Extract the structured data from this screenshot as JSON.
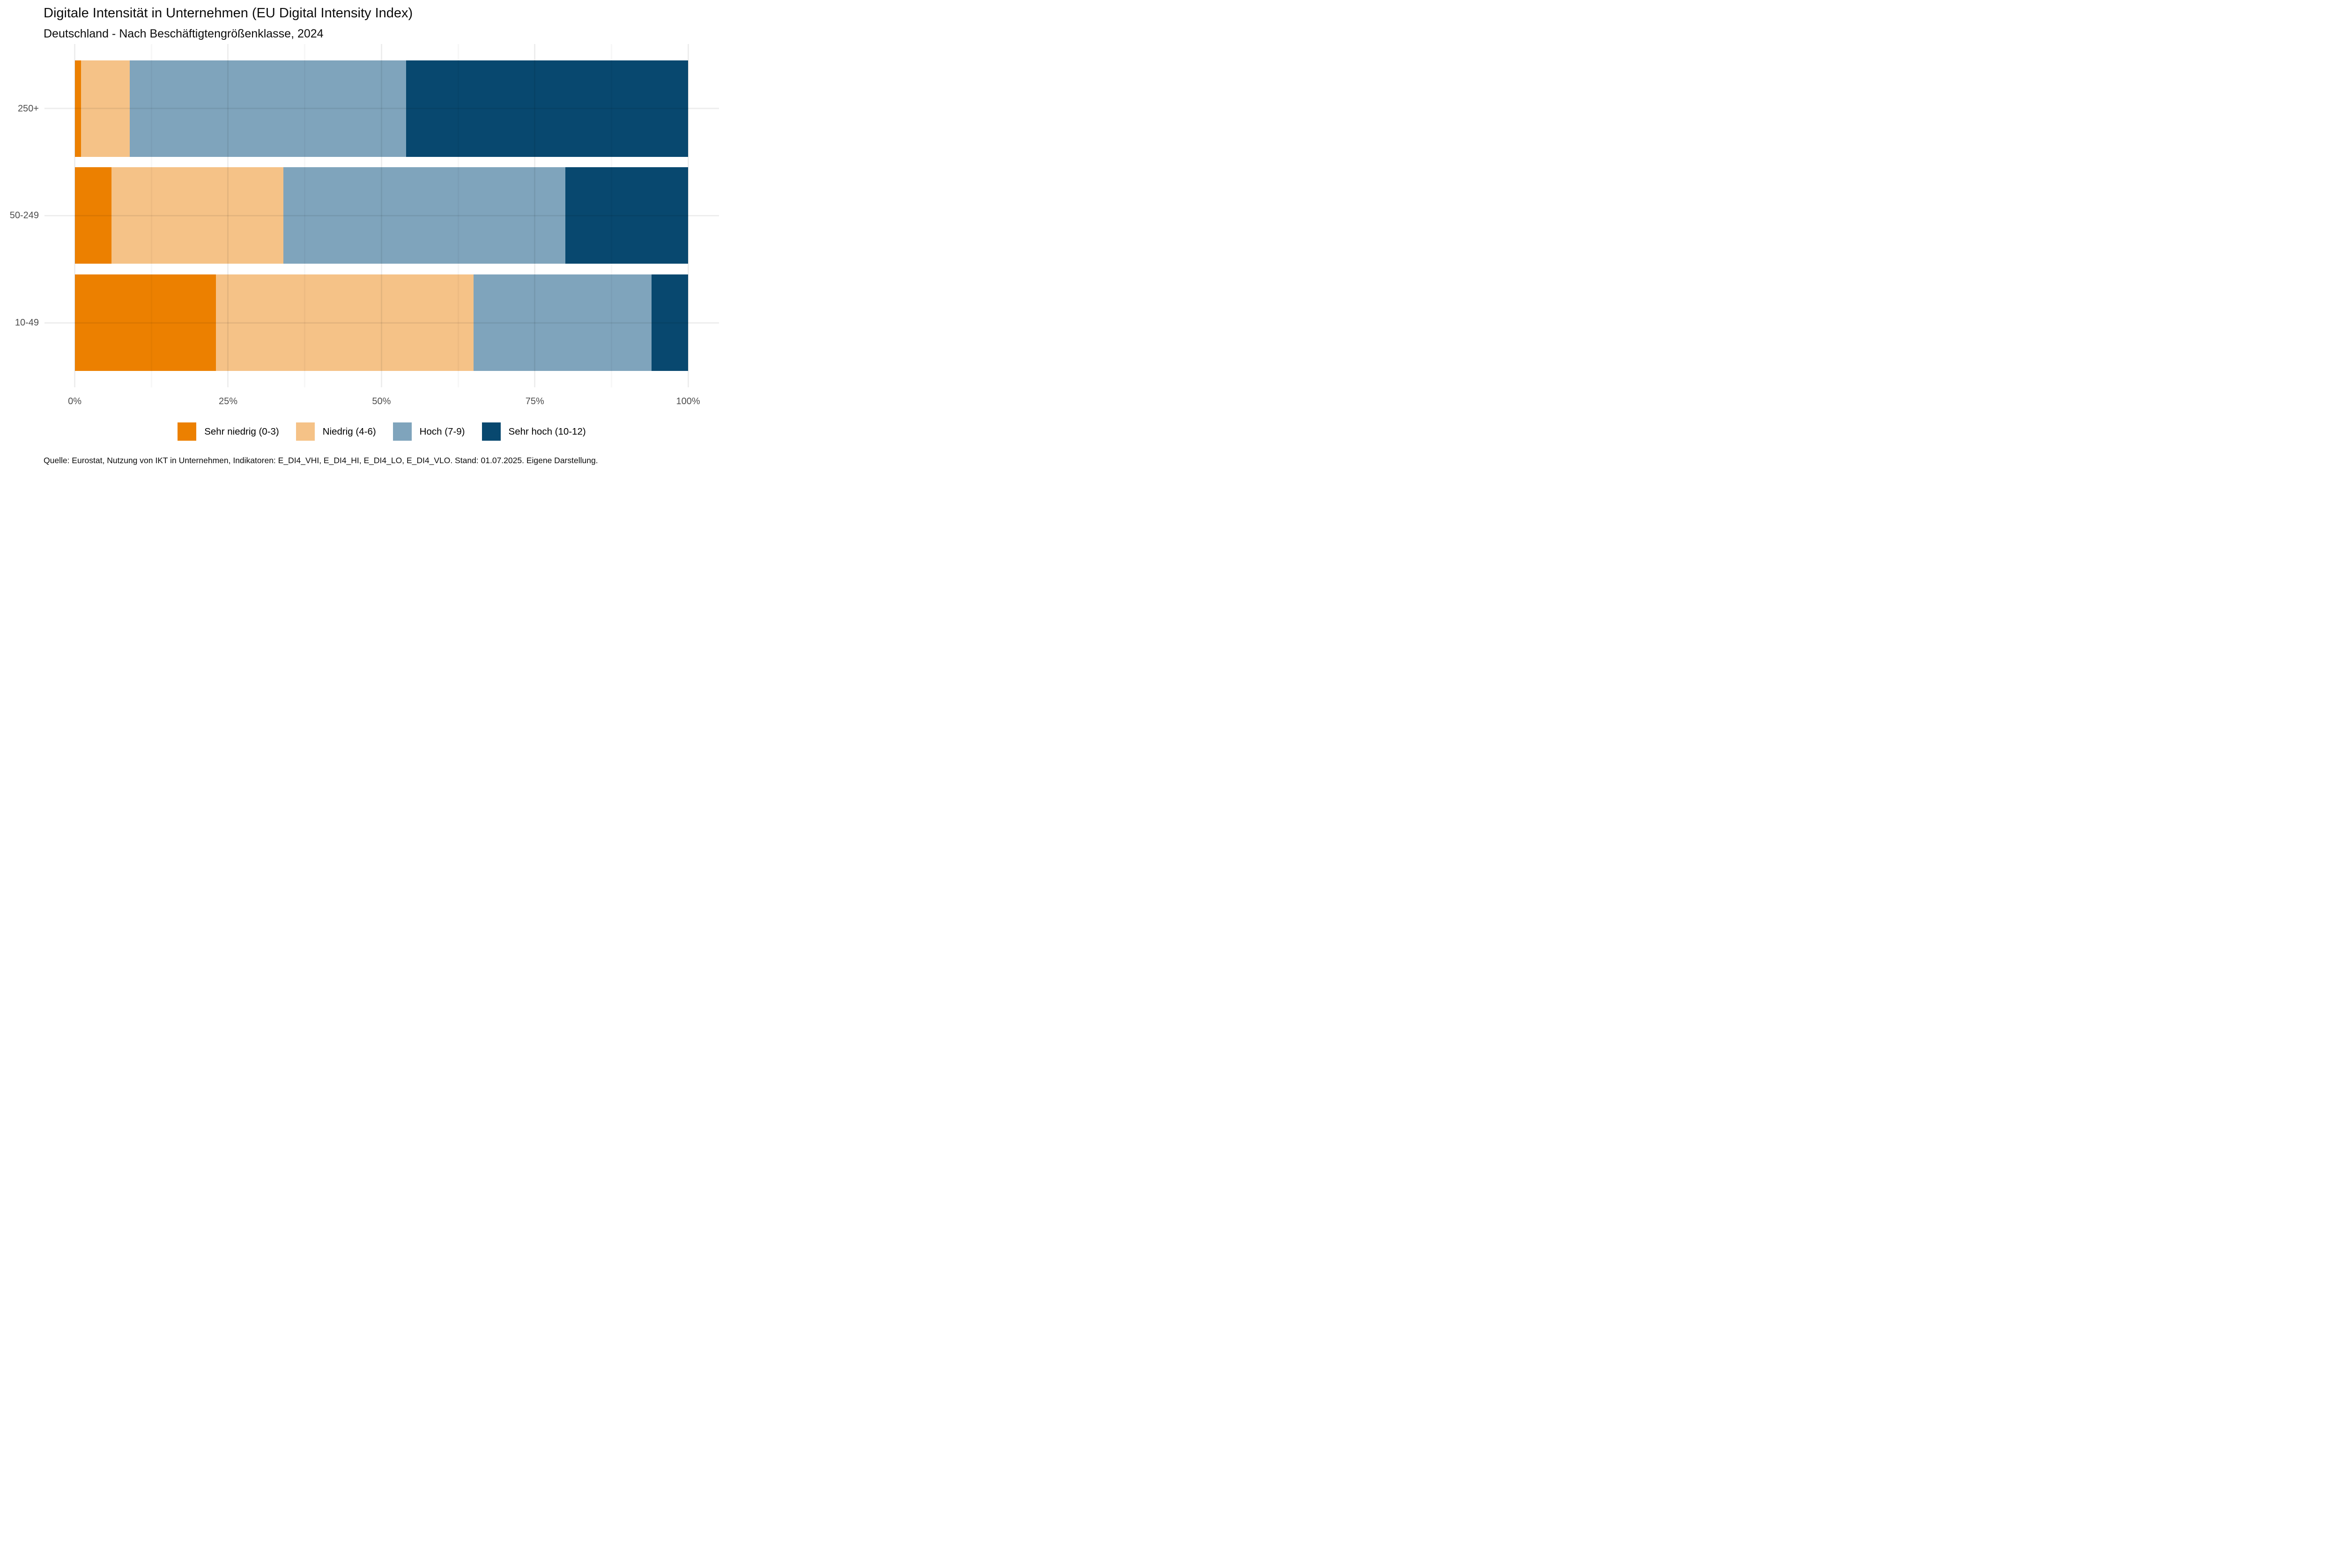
{
  "title": "Digitale Intensität in Unternehmen (EU Digital Intensity Index)",
  "subtitle": "Deutschland - Nach Beschäftigtengrößenklasse, 2024",
  "source_note": "Quelle: Eurostat, Nutzung von IKT in Unternehmen, Indikatoren: E_DI4_VHI, E_DI4_HI, E_DI4_LO, E_DI4_VLO. Stand: 01.07.2025. Eigene Darstellung.",
  "colors": {
    "sehr_niedrig": "#EC8000",
    "niedrig": "#F5C287",
    "hoch": "#7FA4BC",
    "sehr_hoch": "#08486F",
    "axis_text": "#4D4D4D",
    "gridline_on_white": "#EDEDED",
    "background": "#FFFFFF"
  },
  "chart_data": {
    "type": "bar",
    "orientation": "horizontal",
    "stacked": true,
    "unit": "%",
    "title": "Digitale Intensität in Unternehmen (EU Digital Intensity Index)",
    "subtitle": "Deutschland - Nach Beschäftigtengrößenklasse, 2024",
    "xlabel": "",
    "ylabel": "",
    "categories": [
      "250+",
      "50-249",
      "10-49"
    ],
    "series": [
      {
        "name": "Sehr niedrig (0-3)",
        "color": "#EC8000",
        "values": [
          1,
          6,
          23
        ]
      },
      {
        "name": "Niedrig (4-6)",
        "color": "#F5C287",
        "values": [
          8,
          28,
          42
        ]
      },
      {
        "name": "Hoch (7-9)",
        "color": "#7FA4BC",
        "values": [
          45,
          46,
          29
        ]
      },
      {
        "name": "Sehr hoch (10-12)",
        "color": "#08486F",
        "values": [
          46,
          20,
          6
        ]
      }
    ],
    "xlim": [
      0,
      100
    ],
    "x_ticks": [
      "0%",
      "25%",
      "50%",
      "75%",
      "100%"
    ],
    "x_tick_values": [
      0,
      25,
      50,
      75,
      100
    ],
    "x_minor_gridlines": [
      12.5,
      37.5,
      62.5,
      87.5
    ],
    "grid": true,
    "legend_position": "bottom"
  }
}
